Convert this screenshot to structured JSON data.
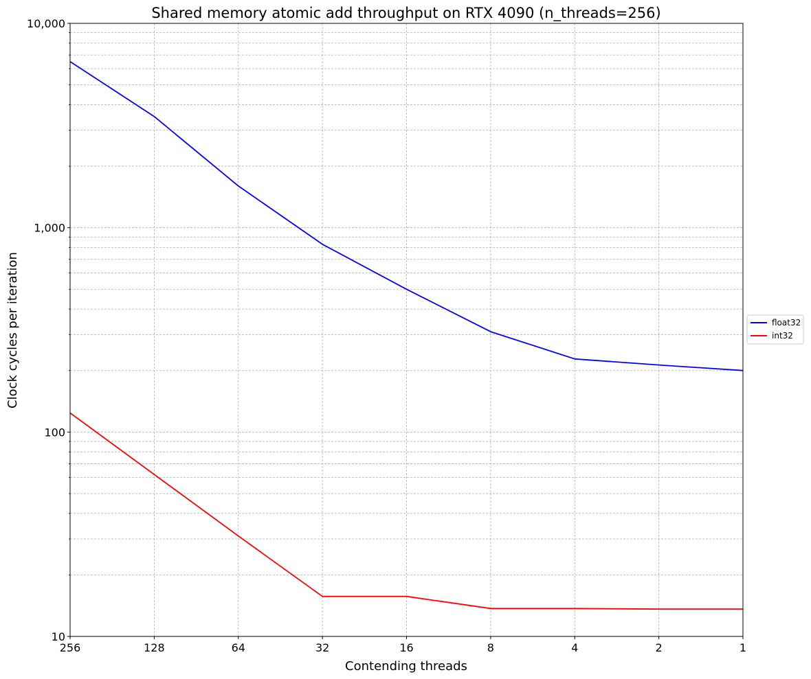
{
  "chart_data": {
    "type": "line",
    "title": "Shared memory atomic add throughput on RTX 4090 (n_threads=256)",
    "xlabel": "Contending threads",
    "ylabel": "Clock cycles per iteration",
    "x": [
      256,
      128,
      64,
      32,
      16,
      8,
      4,
      2,
      1
    ],
    "x_tick_labels": [
      "256",
      "128",
      "64",
      "32",
      "16",
      "8",
      "4",
      "2",
      "1"
    ],
    "x_scale": "log2",
    "x_reversed": true,
    "y_scale": "log",
    "ylim": [
      10,
      10000
    ],
    "y_tick_values": [
      10,
      100,
      1000,
      10000
    ],
    "y_tick_labels": [
      "10",
      "100",
      "1,000",
      "10,000"
    ],
    "grid": true,
    "legend_position": "right",
    "series": [
      {
        "name": "float32",
        "color": "#0000ff",
        "values": [
          6500,
          3500,
          1600,
          830,
          500,
          310,
          228,
          213,
          200
        ]
      },
      {
        "name": "int32",
        "color": "#ff0000",
        "values": [
          124,
          62,
          31,
          15.7,
          15.7,
          13.7,
          13.7,
          13.6,
          13.6
        ]
      }
    ]
  }
}
